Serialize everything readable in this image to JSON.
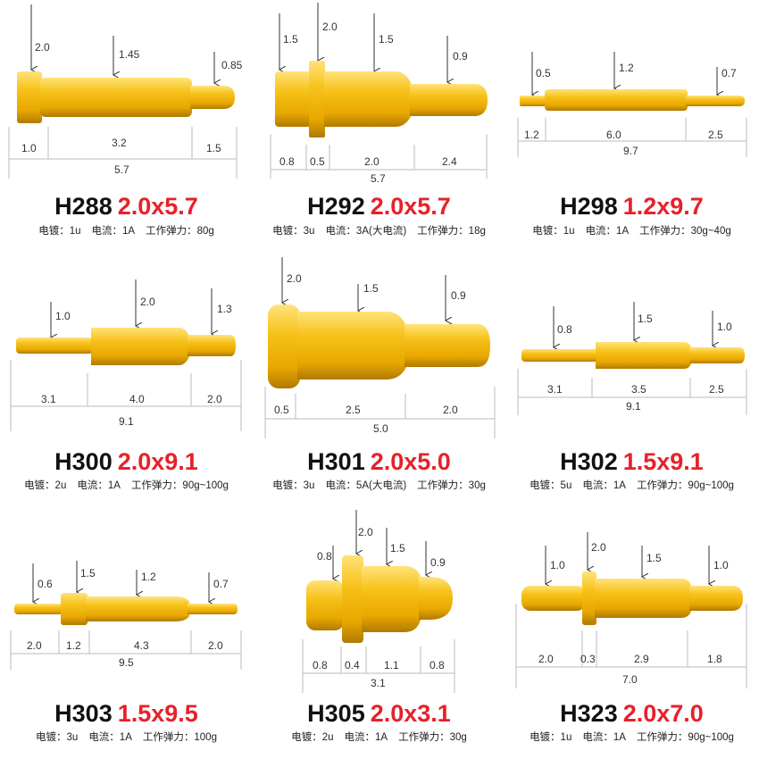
{
  "colors": {
    "accent": "#e8202a",
    "pin_gold": "#f2b70a",
    "pin_light": "#ffe27a",
    "pin_dark": "#b07a00"
  },
  "products": [
    {
      "code": "H288",
      "size": "2.0x5.7",
      "callouts": [
        "2.0",
        "1.45",
        "0.85"
      ],
      "segments": [
        "1.0",
        "3.2",
        "1.5"
      ],
      "total": "5.7",
      "specs": [
        "电镀：1u",
        "电流：1A",
        "工作弹力：80g"
      ]
    },
    {
      "code": "H292",
      "size": "2.0x5.7",
      "callouts": [
        "1.5",
        "2.0",
        "1.5",
        "0.9"
      ],
      "segments": [
        "0.8",
        "0.5",
        "2.0",
        "2.4"
      ],
      "total": "5.7",
      "specs": [
        "电镀：3u",
        "电流：3A(大电流)",
        "工作弹力：18g"
      ]
    },
    {
      "code": "H298",
      "size": "1.2x9.7",
      "callouts": [
        "0.5",
        "1.2",
        "0.7"
      ],
      "segments": [
        "1.2",
        "6.0",
        "2.5"
      ],
      "total": "9.7",
      "specs": [
        "电镀：1u",
        "电流：1A",
        "工作弹力：30g~40g"
      ]
    },
    {
      "code": "H300",
      "size": "2.0x9.1",
      "callouts": [
        "1.0",
        "2.0",
        "1.3"
      ],
      "segments": [
        "3.1",
        "4.0",
        "2.0"
      ],
      "total": "9.1",
      "specs": [
        "电镀：2u",
        "电流：1A",
        "工作弹力：90g~100g"
      ]
    },
    {
      "code": "H301",
      "size": "2.0x5.0",
      "callouts": [
        "2.0",
        "1.5",
        "0.9"
      ],
      "segments": [
        "0.5",
        "2.5",
        "2.0"
      ],
      "total": "5.0",
      "specs": [
        "电镀：3u",
        "电流：5A(大电流)",
        "工作弹力：30g"
      ]
    },
    {
      "code": "H302",
      "size": "1.5x9.1",
      "callouts": [
        "0.8",
        "1.5",
        "1.0"
      ],
      "segments": [
        "3.1",
        "3.5",
        "2.5"
      ],
      "total": "9.1",
      "specs": [
        "电镀：5u",
        "电流：1A",
        "工作弹力：90g~100g"
      ]
    },
    {
      "code": "H303",
      "size": "1.5x9.5",
      "callouts": [
        "0.6",
        "1.5",
        "1.2",
        "0.7"
      ],
      "segments": [
        "2.0",
        "1.2",
        "4.3",
        "2.0"
      ],
      "total": "9.5",
      "specs": [
        "电镀：3u",
        "电流：1A",
        "工作弹力：100g"
      ]
    },
    {
      "code": "H305",
      "size": "2.0x3.1",
      "callouts": [
        "0.8",
        "2.0",
        "1.5",
        "0.9"
      ],
      "segments": [
        "0.8",
        "0.4",
        "1.1",
        "0.8"
      ],
      "total": "3.1",
      "specs": [
        "电镀：2u",
        "电流：1A",
        "工作弹力：30g"
      ]
    },
    {
      "code": "H323",
      "size": "2.0x7.0",
      "callouts": [
        "1.0",
        "2.0",
        "1.5",
        "1.0"
      ],
      "segments": [
        "2.0",
        "0.3",
        "2.9",
        "1.8"
      ],
      "total": "7.0",
      "specs": [
        "电镀：1u",
        "电流：1A",
        "工作弹力：90g~100g"
      ]
    }
  ]
}
